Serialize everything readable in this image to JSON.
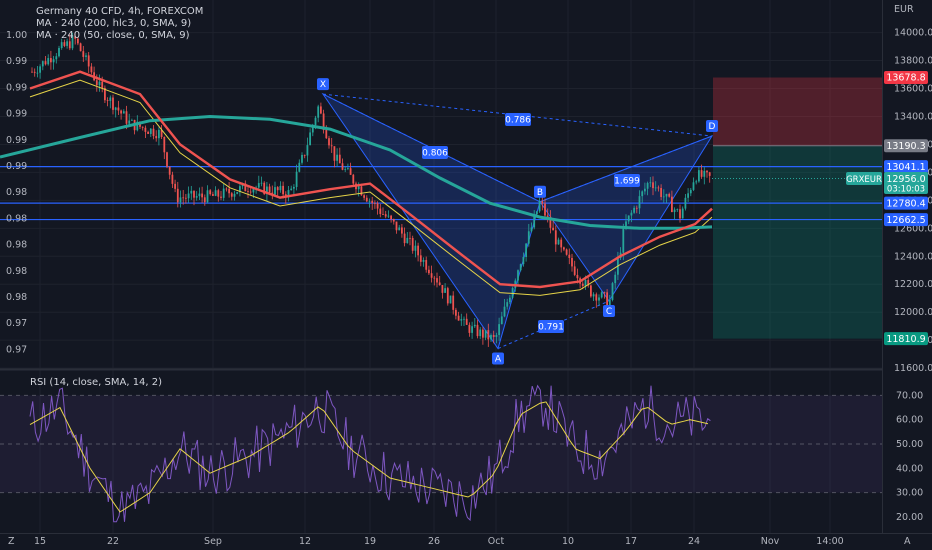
{
  "legend": {
    "title": "Germany 40 CFD, 4h, FOREXCOM",
    "ma1": "MA · 240 (200, hlc3, 0, SMA, 9)",
    "ma2": "MA · 240 (50, close, 0, SMA, 9)",
    "rsi": "RSI (14, close, SMA, 14, 2)"
  },
  "currency_label": "EUR",
  "left_axis_labels": [
    "1.00",
    "0.99",
    "0.99",
    "0.99",
    "0.99",
    "0.99",
    "0.98",
    "0.98",
    "0.98",
    "0.98",
    "0.98",
    "0.97",
    "0.97"
  ],
  "price_axis": {
    "ticks": [
      "14000.0",
      "13800.0",
      "13600.0",
      "13400.0",
      "13200.0",
      "13000.0",
      "12800.0",
      "12600.0",
      "12400.0",
      "12200.0",
      "12000.0",
      "11800.0",
      "11600.0"
    ],
    "tags": [
      {
        "label": "13678.8",
        "price": 13678.8,
        "color": "#f23645"
      },
      {
        "label": "13190.3",
        "price": 13190.3,
        "color": "#787b86"
      },
      {
        "label": "13041.1",
        "price": 13041.1,
        "color": "#2962ff"
      },
      {
        "label": "12780.4",
        "price": 12780.4,
        "color": "#2962ff"
      },
      {
        "label": "12662.5",
        "price": 12662.5,
        "color": "#2962ff"
      },
      {
        "label": "11810.9",
        "price": 11810.9,
        "color": "#089981"
      }
    ],
    "symbol_tag": "GRXEUR",
    "last_price": "12956.0",
    "countdown": "03:10:03"
  },
  "rsi_axis": {
    "ticks": [
      "70.00",
      "60.00",
      "50.00",
      "40.00",
      "30.00",
      "20.00"
    ]
  },
  "time_axis": [
    "15",
    "22",
    "Sep",
    "12",
    "19",
    "26",
    "Oct",
    "10",
    "17",
    "24",
    "Nov",
    "14:00"
  ],
  "corner_labels": {
    "left": "Z",
    "right": "A"
  },
  "pattern": {
    "points": [
      {
        "label": "X",
        "x_label": "12",
        "price": 13560
      },
      {
        "label": "A",
        "x_label": "Oct",
        "price": 11740
      },
      {
        "label": "B",
        "x_label": "Oct",
        "price": 12790
      },
      {
        "label": "C",
        "x_label": "17",
        "price": 12080
      },
      {
        "label": "D",
        "x_label": "24",
        "price": 13260
      }
    ],
    "ratios": [
      "0.786",
      "0.806",
      "0.791",
      "1.699"
    ]
  },
  "horizontal_levels": [
    13041.1,
    12780.4,
    12662.5
  ],
  "position_box": {
    "stop": 13678.8,
    "entry": 13190.3,
    "target": 11810.9
  },
  "colors": {
    "bg": "#131722",
    "bull": "#26a69a",
    "bear": "#ef5350",
    "ma200": "#26a69a",
    "ma50": "#ef5350",
    "level": "#2962ff",
    "pattern": "#2962ff",
    "rsi": "#7e57c2",
    "rsi_ma": "#e6d448",
    "stop": "#f23645",
    "target": "#089981"
  },
  "chart_data": [
    {
      "type": "candlestick",
      "title": "Germany 40 CFD, 4h, FOREXCOM",
      "ylabel": "EUR",
      "ylim": [
        11600,
        14200
      ],
      "x_ticks": [
        "15",
        "22",
        "Sep",
        "12",
        "19",
        "26",
        "Oct",
        "10",
        "17",
        "24",
        "Nov",
        "14:00"
      ],
      "series_approx_close": [
        {
          "x": "15",
          "close": 13800
        },
        {
          "x": "22",
          "close": 13450
        },
        {
          "x": "Sep",
          "close": 12900
        },
        {
          "x": "12",
          "close": 13450
        },
        {
          "x": "19",
          "close": 12950
        },
        {
          "x": "26",
          "close": 12400
        },
        {
          "x": "Oct",
          "close": 11900
        },
        {
          "x": "Oct",
          "close": 12780
        },
        {
          "x": "10",
          "close": 12200
        },
        {
          "x": "17",
          "close": 12600
        },
        {
          "x": "24",
          "close": 12956
        }
      ],
      "indicators": [
        {
          "name": "MA · 240 (200, hlc3, 0, SMA, 9)",
          "color": "#26a69a"
        },
        {
          "name": "MA · 240 (50, close, 0, SMA, 9)",
          "color": "#ef5350"
        }
      ]
    },
    {
      "type": "line",
      "title": "RSI (14, close, SMA, 14, 2)",
      "ylim": [
        15,
        75
      ],
      "bands": [
        70,
        50,
        30
      ],
      "y_ticks": [
        "70.00",
        "60.00",
        "50.00",
        "40.00",
        "30.00",
        "20.00"
      ]
    }
  ]
}
